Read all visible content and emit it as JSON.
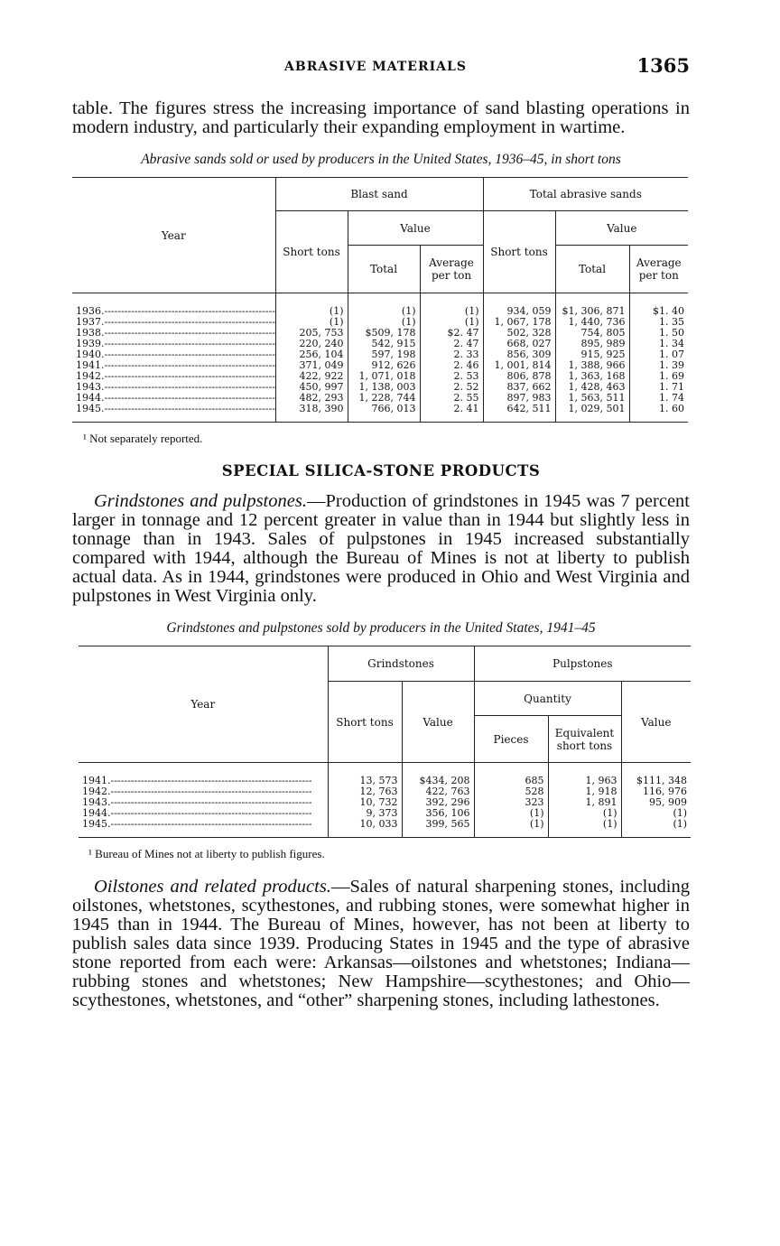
{
  "header": {
    "running_title": "ABRASIVE MATERIALS",
    "page_number": "1365"
  },
  "intro_paragraph": "table. The figures stress the increasing importance of sand blasting operations in modern industry, and particularly their expanding employment in wartime.",
  "table1": {
    "caption": "Abrasive sands sold or used by producers in the United States, 1936–45, in short tons",
    "col_year": "Year",
    "group_blast": "Blast sand",
    "group_total": "Total abrasive sands",
    "value": "Value",
    "short_tons": "Short tons",
    "total": "Total",
    "average": "Average per ton",
    "rows": [
      [
        "1936",
        "(1)",
        "(1)",
        "(1)",
        "934, 059",
        "$1, 306, 871",
        "$1. 40"
      ],
      [
        "1937",
        "(1)",
        "(1)",
        "(1)",
        "1, 067, 178",
        "1, 440, 736",
        "1. 35"
      ],
      [
        "1938",
        "205, 753",
        "$509, 178",
        "$2. 47",
        "502, 328",
        "754, 805",
        "1. 50"
      ],
      [
        "1939",
        "220, 240",
        "542, 915",
        "2. 47",
        "668, 027",
        "895, 989",
        "1. 34"
      ],
      [
        "1940",
        "256, 104",
        "597, 198",
        "2. 33",
        "856, 309",
        "915, 925",
        "1. 07"
      ],
      [
        "1941",
        "371, 049",
        "912, 626",
        "2. 46",
        "1, 001, 814",
        "1, 388, 966",
        "1. 39"
      ],
      [
        "1942",
        "422, 922",
        "1, 071, 018",
        "2. 53",
        "806, 878",
        "1, 363, 168",
        "1. 69"
      ],
      [
        "1943",
        "450, 997",
        "1, 138, 003",
        "2. 52",
        "837, 662",
        "1, 428, 463",
        "1. 71"
      ],
      [
        "1944",
        "482, 293",
        "1, 228, 744",
        "2. 55",
        "897, 983",
        "1, 563, 511",
        "1. 74"
      ],
      [
        "1945",
        "318, 390",
        "766, 013",
        "2. 41",
        "642, 511",
        "1, 029, 501",
        "1. 60"
      ]
    ],
    "footnote": "¹ Not separately reported."
  },
  "section_title": "SPECIAL SILICA-STONE PRODUCTS",
  "grindstones_paragraph": {
    "lead": "Grindstones and pulpstones.",
    "text": "—Production of grindstones in 1945 was 7 percent larger in tonnage and 12 percent greater in value than in 1944 but slightly less in tonnage than in 1943. Sales of pulpstones in 1945 increased substantially compared with 1944, although the Bureau of Mines is not at liberty to publish actual data. As in 1944, grindstones were produced in Ohio and West Virginia and pulpstones in West Virginia only."
  },
  "table2": {
    "caption": "Grindstones and pulpstones sold by producers in the United States, 1941–45",
    "col_year": "Year",
    "group_grind": "Grindstones",
    "group_pulp": "Pulpstones",
    "quantity": "Quantity",
    "short_tons": "Short tons",
    "value": "Value",
    "pieces": "Pieces",
    "equivalent": "Equivalent short tons",
    "rows": [
      [
        "1941",
        "13, 573",
        "$434, 208",
        "685",
        "1, 963",
        "$111, 348"
      ],
      [
        "1942",
        "12, 763",
        "422, 763",
        "528",
        "1, 918",
        "116, 976"
      ],
      [
        "1943",
        "10, 732",
        "392, 296",
        "323",
        "1, 891",
        "95, 909"
      ],
      [
        "1944",
        "9, 373",
        "356, 106",
        "(1)",
        "(1)",
        "(1)"
      ],
      [
        "1945",
        "10, 033",
        "399, 565",
        "(1)",
        "(1)",
        "(1)"
      ]
    ],
    "footnote": "¹ Bureau of Mines not at liberty to publish figures."
  },
  "oilstones_paragraph": {
    "lead": "Oilstones and related products.",
    "text": "—Sales of natural sharpening stones, including oilstones, whetstones, scythestones, and rubbing stones, were somewhat higher in 1945 than in 1944. The Bureau of Mines, however, has not been at liberty to publish sales data since 1939. Producing States in 1945 and the type of abrasive stone reported from each were: Arkansas—oilstones and whetstones; Indiana—rubbing stones and whetstones; New Hampshire—scythestones; and Ohio—scythestones, whetstones, and “other” sharpening stones, including lathestones."
  }
}
